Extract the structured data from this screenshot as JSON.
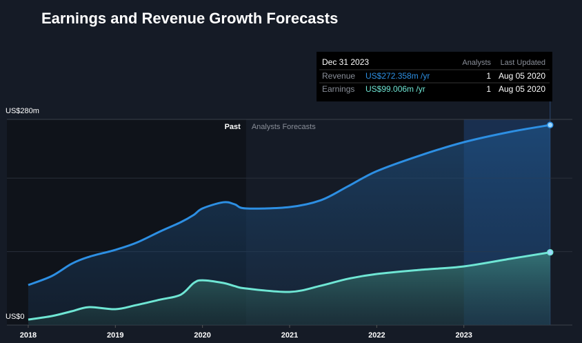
{
  "chart_data": {
    "type": "line",
    "title": "Earnings and Revenue Growth Forecasts",
    "x": [
      2018.0,
      2018.27,
      2018.5,
      2018.7,
      2019.0,
      2019.24,
      2019.52,
      2019.75,
      2019.9,
      2020.0,
      2020.24,
      2020.37,
      2020.5,
      2021.0,
      2021.36,
      2021.67,
      2022.0,
      2022.5,
      2023.0,
      2023.53,
      2023.99
    ],
    "series": [
      {
        "name": "Revenue",
        "color": "#2d8fe3",
        "values": [
          54.5,
          66.7,
          83.6,
          93,
          102.4,
          112,
          127.8,
          140,
          150,
          158.8,
          167.2,
          164.4,
          158.8,
          160.7,
          170,
          188.9,
          209.5,
          231,
          249,
          263,
          272.358
        ]
      },
      {
        "name": "Earnings",
        "color": "#6fe6d4",
        "values": [
          7.5,
          12.2,
          18.8,
          24.4,
          21.6,
          27.2,
          34.8,
          41.3,
          57.3,
          61,
          57.3,
          53,
          49.8,
          45.1,
          53.6,
          63,
          69.5,
          75.2,
          79.9,
          90.2,
          99.006
        ]
      }
    ],
    "xlim": [
      2017.755,
      2024.245
    ],
    "xticks": [
      2018,
      2019,
      2020,
      2021,
      2022,
      2023
    ],
    "ylim": [
      0,
      280
    ],
    "yticks": [
      {
        "value": 0,
        "label": "US$0"
      },
      {
        "value": 280,
        "label": "US$280m"
      }
    ],
    "gridlines": [
      100,
      200
    ],
    "past_until": 2020.5,
    "past_label": "Past",
    "forecast_label": "Analysts Forecasts",
    "tooltip": {
      "date": "Dec 31 2023",
      "headers": [
        "Analysts",
        "Last Updated"
      ],
      "rows": [
        {
          "name": "Revenue",
          "value": "US$272.358m /yr",
          "analysts": "1",
          "updated": "Aug 05 2020"
        },
        {
          "name": "Earnings",
          "value": "US$99.006m /yr",
          "analysts": "1",
          "updated": "Aug 05 2020"
        }
      ]
    }
  }
}
